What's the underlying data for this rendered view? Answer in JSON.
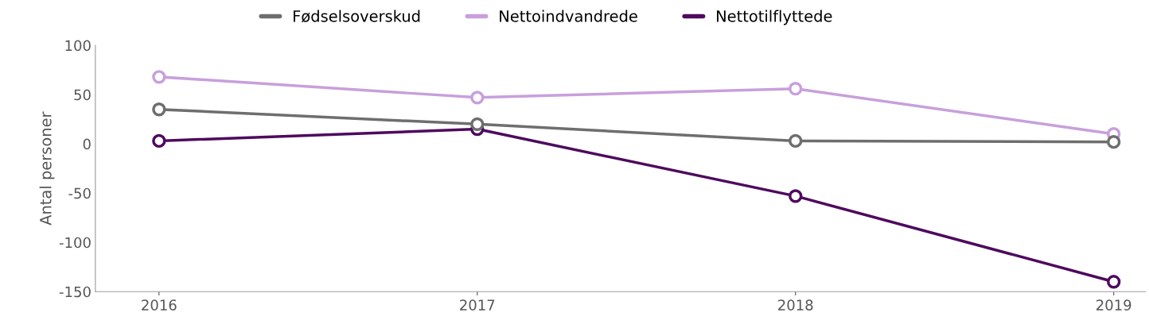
{
  "chart_data": {
    "type": "line",
    "ylabel": "Antal personer",
    "categories": [
      "2016",
      "2017",
      "2018",
      "2019"
    ],
    "series": [
      {
        "name": "Fødselsoverskud",
        "color": "#6e6e6e",
        "values": [
          35,
          20,
          3,
          2
        ]
      },
      {
        "name": "Nettoindvandrede",
        "color": "#c89fdc",
        "values": [
          68,
          47,
          56,
          10
        ]
      },
      {
        "name": "Nettotilflyttede",
        "color": "#4e0a5e",
        "values": [
          3,
          15,
          -53,
          -140
        ]
      }
    ],
    "ylim": [
      -150,
      100
    ],
    "yticks": [
      -150,
      -100,
      -50,
      0,
      50,
      100
    ],
    "grid": false,
    "legend": "top",
    "marker": "circle",
    "line_style": "solid"
  }
}
